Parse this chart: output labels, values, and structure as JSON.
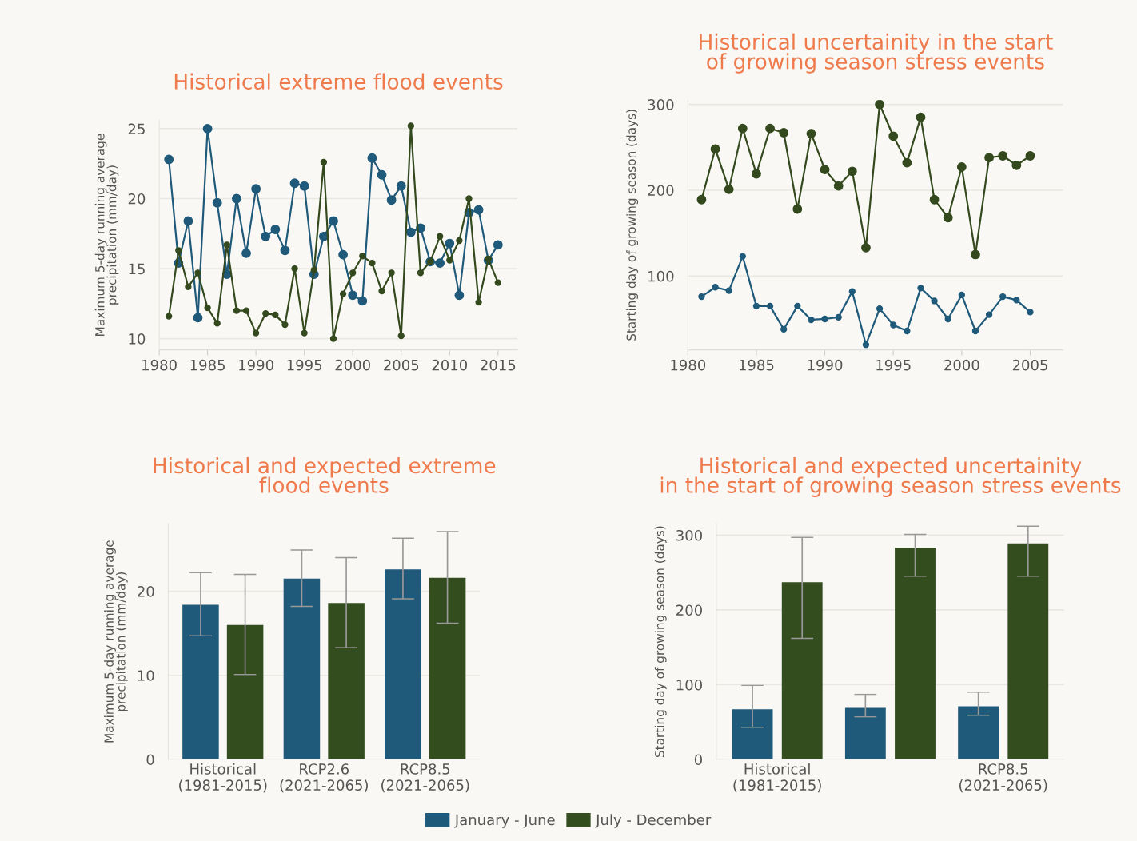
{
  "chart_data": [
    {
      "type": "line",
      "title": "Historical extreme flood events",
      "ylabel": "Maximum 5-day running average\nprecipitation (mm/day)",
      "x": [
        1981,
        1982,
        1983,
        1984,
        1985,
        1986,
        1987,
        1988,
        1989,
        1990,
        1991,
        1992,
        1993,
        1994,
        1995,
        1996,
        1997,
        1998,
        1999,
        2000,
        2001,
        2002,
        2003,
        2004,
        2005,
        2006,
        2007,
        2008,
        2009,
        2010,
        2011,
        2012,
        2013,
        2014,
        2015
      ],
      "series": [
        {
          "color": "#1f5a7a",
          "values": [
            22.8,
            15.4,
            18.4,
            11.5,
            25.0,
            19.7,
            14.6,
            20.0,
            16.1,
            20.7,
            17.3,
            17.8,
            16.3,
            21.1,
            20.9,
            14.6,
            17.3,
            18.4,
            16.0,
            13.1,
            12.7,
            22.9,
            21.7,
            19.9,
            20.9,
            17.6,
            17.9,
            15.5,
            15.4,
            16.8,
            13.1,
            19.0,
            19.2,
            15.6,
            16.7
          ]
        },
        {
          "color": "#344a1e",
          "values": [
            11.6,
            16.3,
            13.7,
            14.7,
            12.2,
            11.1,
            16.7,
            12.0,
            12.0,
            10.4,
            11.8,
            11.7,
            11.0,
            15.0,
            10.4,
            14.9,
            22.6,
            10.0,
            13.2,
            14.7,
            15.9,
            15.4,
            13.4,
            14.7,
            10.2,
            25.2,
            14.7,
            15.5,
            17.3,
            15.6,
            17.0,
            20.0,
            12.6,
            15.7,
            14.0
          ]
        }
      ],
      "xlim": [
        1980,
        2017
      ],
      "xticks": [
        1980,
        1985,
        1990,
        1995,
        2000,
        2005,
        2010,
        2015
      ],
      "ylim": [
        9.2,
        25.6
      ],
      "yticks": [
        10,
        15,
        20,
        25
      ],
      "grid": "y",
      "marker": "circle",
      "line_style": "solid"
    },
    {
      "type": "line",
      "title": "Historical uncertainity in the start\nof growing season stress events",
      "ylabel": "Starting day of growing season (days)",
      "x": [
        1981,
        1982,
        1983,
        1984,
        1985,
        1986,
        1987,
        1988,
        1989,
        1990,
        1991,
        1992,
        1993,
        1994,
        1995,
        1996,
        1997,
        1998,
        1999,
        2000,
        2001,
        2002,
        2003,
        2004,
        2005
      ],
      "series": [
        {
          "color": "#344a1e",
          "values": [
            189,
            248,
            201,
            272,
            219,
            272,
            267,
            178,
            266,
            224,
            205,
            222,
            133,
            300,
            263,
            232,
            285,
            189,
            168,
            227,
            125,
            238,
            240,
            229,
            240
          ]
        },
        {
          "color": "#1f5a7a",
          "values": [
            76,
            87,
            83,
            123,
            65,
            65,
            38,
            65,
            49,
            50,
            52,
            82,
            20,
            62,
            43,
            36,
            86,
            71,
            50,
            78,
            36,
            55,
            76,
            72,
            58
          ]
        }
      ],
      "xlim": [
        1980,
        2007.4
      ],
      "xticks": [
        1980,
        1985,
        1990,
        1995,
        2000,
        2005
      ],
      "ylim": [
        14,
        305
      ],
      "yticks": [
        100,
        200,
        300
      ],
      "grid": "y",
      "marker": "circle",
      "line_style": "solid"
    },
    {
      "type": "bar",
      "title": "Historical and expected extreme\nflood events",
      "ylabel": "Maximum 5-day running average\nprecipitation (mm/day)",
      "categories": [
        "Historical\n(1981-2015)",
        "RCP2.6\n(2021-2065)",
        "RCP8.5\n(2021-2065)"
      ],
      "series": [
        {
          "color": "#1f5a7a",
          "values": [
            18.4,
            21.5,
            22.6
          ],
          "errors": [
            [
              14.7,
              22.2
            ],
            [
              18.2,
              24.9
            ],
            [
              19.1,
              26.3
            ]
          ]
        },
        {
          "color": "#344d1f",
          "values": [
            16.0,
            18.6,
            21.6
          ],
          "errors": [
            [
              10.1,
              22.0
            ],
            [
              13.3,
              24.0
            ],
            [
              16.2,
              27.1
            ]
          ]
        }
      ],
      "ylim": [
        0,
        28
      ],
      "yticks": [
        0,
        10,
        20
      ],
      "grid": "y"
    },
    {
      "type": "bar",
      "title": "Historical and expected uncertainity\nin the start of growing season stress events",
      "ylabel": "Starting day of growing season (days)",
      "categories": [
        "Historical\n(1981-2015)",
        null,
        "RCP8.5\n(2021-2065)"
      ],
      "series": [
        {
          "name": "January - June",
          "color": "#1f5a7a",
          "values": [
            67,
            69,
            71
          ],
          "errors": [
            [
              43,
              99
            ],
            [
              57,
              87
            ],
            [
              59,
              90
            ]
          ]
        },
        {
          "name": "July - December",
          "color": "#344d1f",
          "values": [
            237,
            283,
            289
          ],
          "errors": [
            [
              162,
              297
            ],
            [
              245,
              301
            ],
            [
              245,
              312
            ]
          ]
        }
      ],
      "ylim": [
        0,
        315
      ],
      "yticks": [
        0,
        100,
        200,
        300
      ],
      "grid": "y",
      "legend": "bottom"
    }
  ]
}
